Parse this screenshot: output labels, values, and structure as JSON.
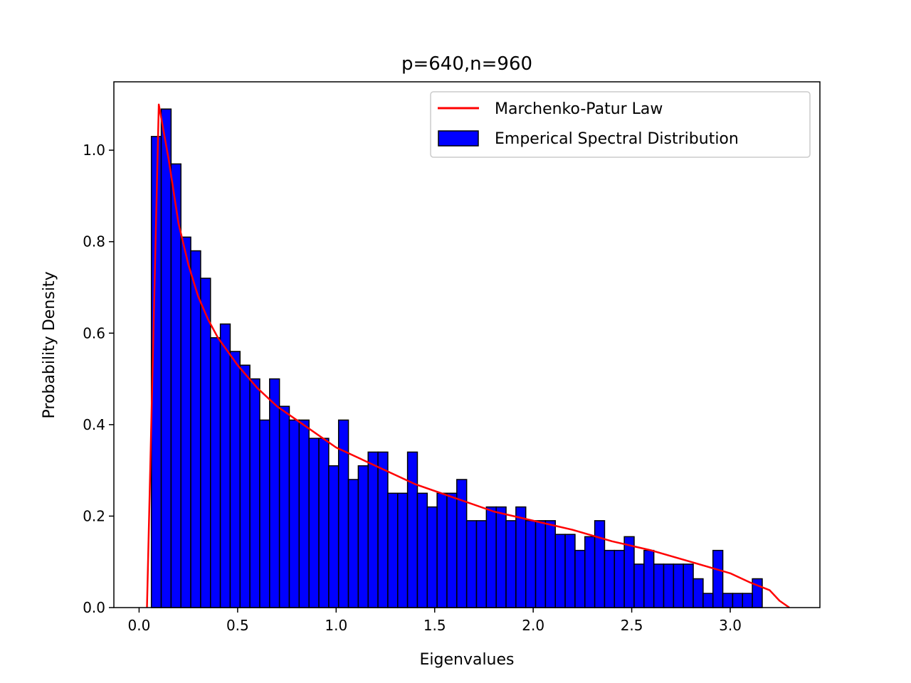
{
  "chart_data": {
    "type": "bar",
    "title": "p=640,n=960",
    "xlabel": "Eigenvalues",
    "ylabel": "Probability Density",
    "xlim": [
      -0.128,
      3.455
    ],
    "ylim": [
      0.0,
      1.1495
    ],
    "xticks": [
      0.0,
      0.5,
      1.0,
      1.5,
      2.0,
      2.5,
      3.0
    ],
    "xtick_labels": [
      "0.0",
      "0.5",
      "1.0",
      "1.5",
      "2.0",
      "2.5",
      "3.0"
    ],
    "yticks": [
      0.0,
      0.2,
      0.4,
      0.6,
      0.8,
      1.0
    ],
    "ytick_labels": [
      "0.0",
      "0.2",
      "0.4",
      "0.6",
      "0.8",
      "1.0"
    ],
    "grid": false,
    "legend": "top-right",
    "bin_start": 0.0623,
    "bin_width": 0.05,
    "bar_color": "#0000ff",
    "bar_edge_color": "#000000",
    "line_color": "#ff0000",
    "series": [
      {
        "name": "Emperical Spectral Distribution",
        "type": "histogram",
        "values": [
          1.03,
          1.09,
          0.97,
          0.81,
          0.78,
          0.72,
          0.59,
          0.62,
          0.56,
          0.53,
          0.5,
          0.41,
          0.5,
          0.44,
          0.41,
          0.41,
          0.37,
          0.37,
          0.31,
          0.41,
          0.28,
          0.31,
          0.34,
          0.34,
          0.25,
          0.25,
          0.34,
          0.25,
          0.22,
          0.25,
          0.25,
          0.28,
          0.19,
          0.19,
          0.22,
          0.22,
          0.19,
          0.22,
          0.19,
          0.19,
          0.19,
          0.16,
          0.16,
          0.125,
          0.155,
          0.19,
          0.125,
          0.125,
          0.155,
          0.095,
          0.125,
          0.095,
          0.095,
          0.095,
          0.095,
          0.063,
          0.031,
          0.125,
          0.031,
          0.031,
          0.031,
          0.063
        ]
      },
      {
        "name": "Marchenko-Patur Law",
        "type": "line",
        "x": [
          0.04,
          0.1,
          0.15,
          0.2,
          0.25,
          0.3,
          0.35,
          0.4,
          0.5,
          0.6,
          0.7,
          0.8,
          1.0,
          1.2,
          1.4,
          1.6,
          1.8,
          2.0,
          2.2,
          2.4,
          2.6,
          2.8,
          3.0,
          3.1,
          3.2,
          3.25,
          3.3
        ],
        "y": [
          0.0,
          1.1,
          0.98,
          0.84,
          0.75,
          0.68,
          0.63,
          0.59,
          0.53,
          0.48,
          0.44,
          0.41,
          0.35,
          0.31,
          0.27,
          0.24,
          0.21,
          0.19,
          0.17,
          0.145,
          0.125,
          0.1,
          0.075,
          0.055,
          0.038,
          0.015,
          0.0
        ]
      }
    ]
  }
}
